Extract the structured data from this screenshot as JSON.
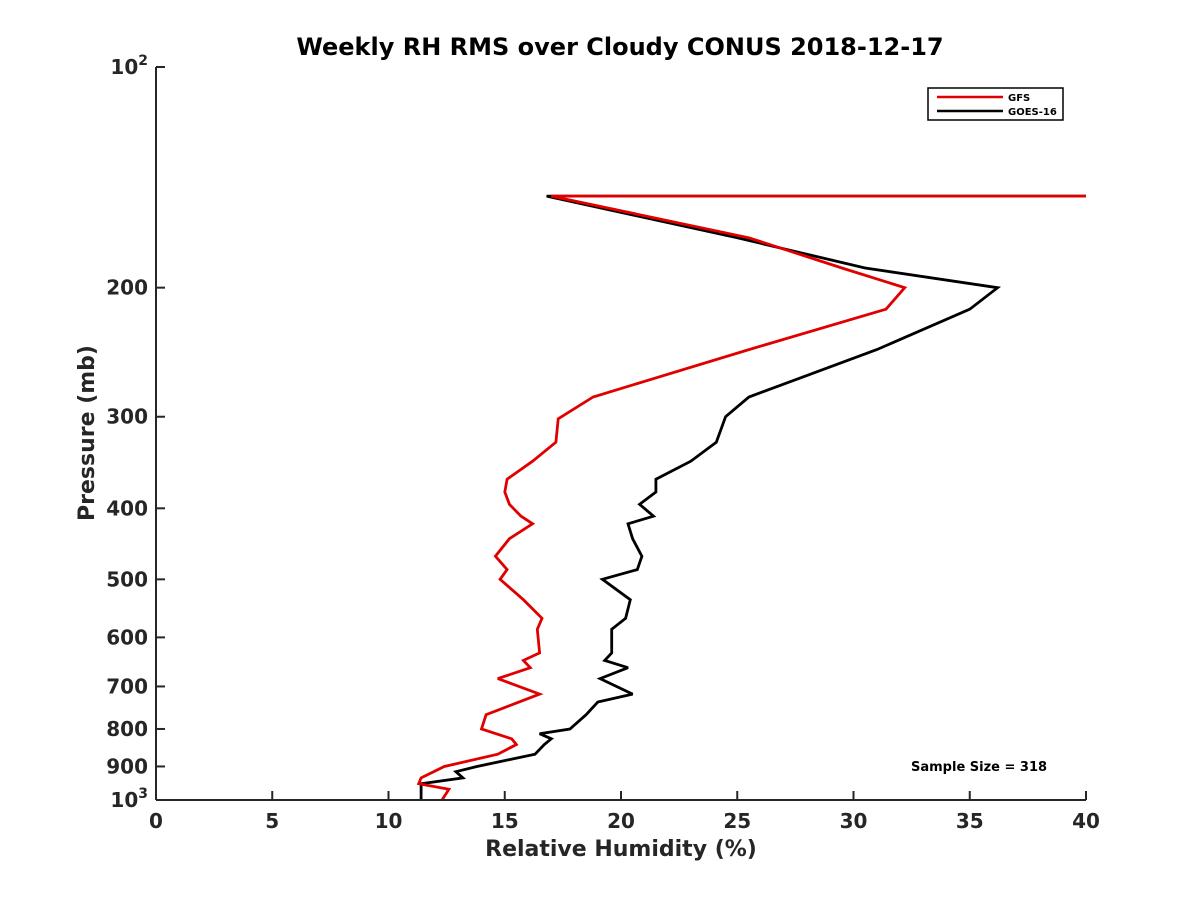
{
  "chart_data": {
    "type": "line",
    "title": "Weekly RH RMS over Cloudy CONUS 2018-12-17",
    "xlabel": "Relative Humidity (%)",
    "ylabel": "Pressure (mb)",
    "xlim": [
      0,
      40
    ],
    "ylim": [
      100,
      1000
    ],
    "y_scale": "log",
    "y_reversed": true,
    "x_ticks": [
      0,
      5,
      10,
      15,
      20,
      25,
      30,
      35,
      40
    ],
    "x_tick_labels": [
      "0",
      "5",
      "10",
      "15",
      "20",
      "25",
      "30",
      "35",
      "40"
    ],
    "y_ticks": [
      100,
      200,
      300,
      400,
      500,
      600,
      700,
      800,
      900,
      1000
    ],
    "y_tick_labels": [
      {
        "base": "10",
        "exp": "2"
      },
      {
        "base": "200"
      },
      {
        "base": "300"
      },
      {
        "base": "400"
      },
      {
        "base": "500"
      },
      {
        "base": "600"
      },
      {
        "base": "700"
      },
      {
        "base": "800"
      },
      {
        "base": "900"
      },
      {
        "base": "10",
        "exp": "3"
      }
    ],
    "legend": {
      "position": "top-right",
      "entries": [
        "GFS",
        "GOES-16"
      ]
    },
    "annotation": "Sample Size = 318",
    "series": [
      {
        "name": "GFS",
        "color": "#e00000",
        "x": [
          40,
          17.0,
          25.5,
          29.5,
          32.2,
          31.4,
          25.5,
          18.8,
          17.3,
          17.2,
          16.2,
          15.1,
          15.0,
          15.2,
          15.7,
          16.2,
          15.2,
          14.6,
          15.1,
          14.8,
          15.8,
          16.6,
          16.4,
          16.5,
          15.8,
          16.1,
          14.7,
          16.5,
          14.2,
          14.0,
          15.3,
          15.5,
          14.7,
          12.4,
          11.4,
          11.3,
          12.6,
          12.3
        ],
        "y": [
          150,
          150,
          171,
          188,
          200,
          214,
          243,
          282,
          302,
          325,
          345,
          365,
          380,
          395,
          410,
          420,
          440,
          465,
          485,
          500,
          533,
          565,
          585,
          630,
          645,
          660,
          683,
          717,
          765,
          800,
          825,
          840,
          866,
          900,
          933,
          950,
          967,
          1000
        ]
      },
      {
        "name": "GOES-16",
        "color": "#000000",
        "x": [
          40,
          16.8,
          25.0,
          30.5,
          36.2,
          35.0,
          31.0,
          25.5,
          24.5,
          24.1,
          23.0,
          21.5,
          21.5,
          20.8,
          21.4,
          20.3,
          20.5,
          20.9,
          20.7,
          19.2,
          20.4,
          20.2,
          19.6,
          19.6,
          19.3,
          20.3,
          19.1,
          20.5,
          19.0,
          18.5,
          17.8,
          16.5,
          17.0,
          16.7,
          16.3,
          13.8,
          12.9,
          13.2,
          11.4,
          11.4,
          11.4
        ],
        "y": [
          150,
          150,
          171,
          188,
          200,
          214,
          243,
          282,
          300,
          325,
          345,
          365,
          380,
          395,
          410,
          420,
          440,
          465,
          485,
          500,
          533,
          565,
          585,
          630,
          645,
          660,
          683,
          717,
          735,
          765,
          800,
          812,
          825,
          840,
          866,
          900,
          915,
          933,
          950,
          967,
          1000
        ]
      }
    ]
  }
}
